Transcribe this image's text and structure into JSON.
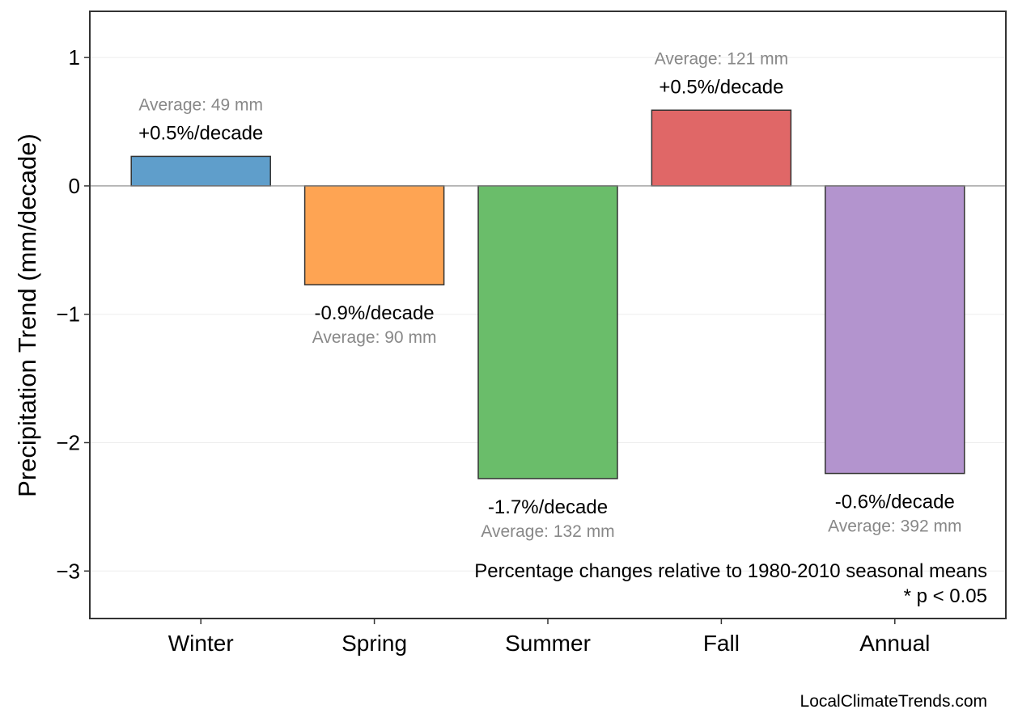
{
  "chart_data": {
    "type": "bar",
    "title": "",
    "xlabel": "",
    "ylabel": "Precipitation Trend (mm/decade)",
    "ylim": [
      -3.37,
      1.36
    ],
    "yticks": [
      1,
      0,
      -1,
      -2,
      -3
    ],
    "ytick_labels": [
      "1",
      "0",
      "−1",
      "−2",
      "−3"
    ],
    "grid": true,
    "categories": [
      "Winter",
      "Spring",
      "Summer",
      "Fall",
      "Annual"
    ],
    "values": [
      0.23,
      -0.77,
      -2.28,
      0.59,
      -2.24
    ],
    "colors": [
      "#5f9ecb",
      "#fea453",
      "#6abd6a",
      "#e06767",
      "#b394ce"
    ],
    "trend_labels": [
      "+0.5%/decade",
      "-0.9%/decade",
      "-1.7%/decade",
      "+0.5%/decade",
      "-0.6%/decade"
    ],
    "average_labels": [
      "Average: 49 mm",
      "Average: 90 mm",
      "Average: 132 mm",
      "Average: 121 mm",
      "Average: 392 mm"
    ],
    "annotations": [
      "Percentage changes relative to 1980-2010 seasonal means",
      "* p < 0.05"
    ],
    "credit": "LocalClimateTrends.com"
  }
}
